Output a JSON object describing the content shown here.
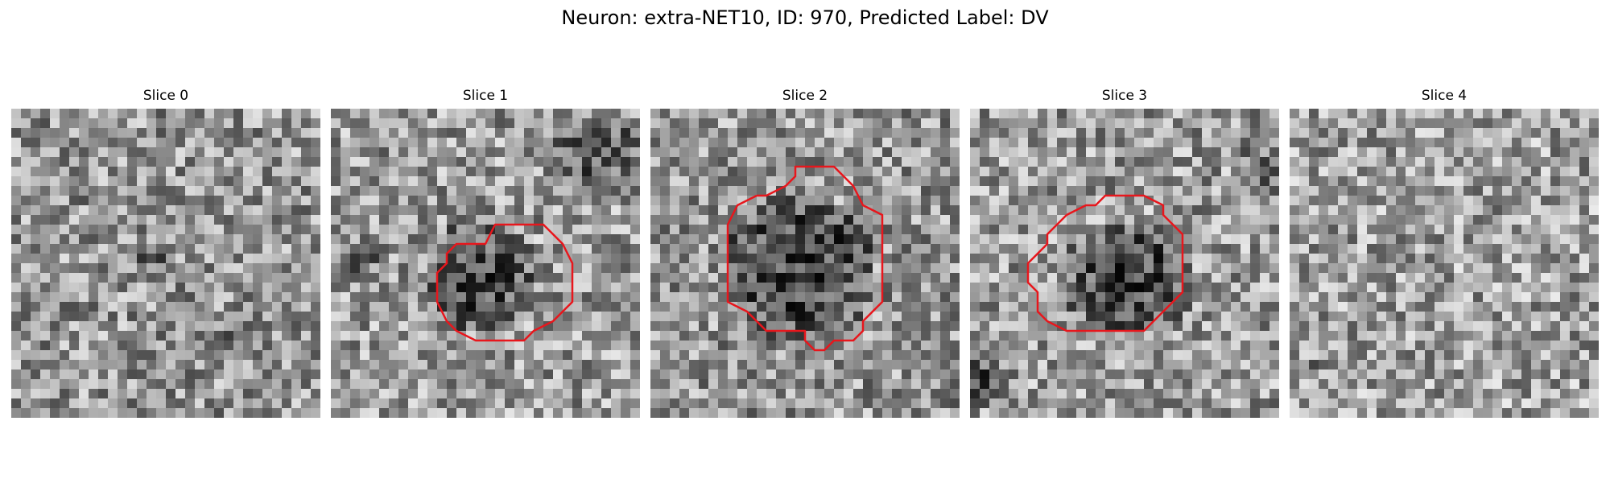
{
  "figure": {
    "title": "Neuron: extra-NET10, ID: 970, Predicted Label: DV"
  },
  "contour_color": "#e8161c",
  "panels": [
    {
      "title": "Slice 0",
      "has_contour": false,
      "mean_brightness": 150,
      "background": "grayscale noise texture"
    },
    {
      "title": "Slice 1",
      "has_contour": true,
      "mean_brightness": 155,
      "background": "grayscale noise with dark blob and dark top-right corner"
    },
    {
      "title": "Slice 2",
      "has_contour": true,
      "mean_brightness": 150,
      "background": "grayscale noise with large dark blob"
    },
    {
      "title": "Slice 3",
      "has_contour": true,
      "mean_brightness": 155,
      "background": "grayscale noise with dark blob"
    },
    {
      "title": "Slice 4",
      "has_contour": false,
      "mean_brightness": 160,
      "background": "grayscale noise texture"
    }
  ]
}
